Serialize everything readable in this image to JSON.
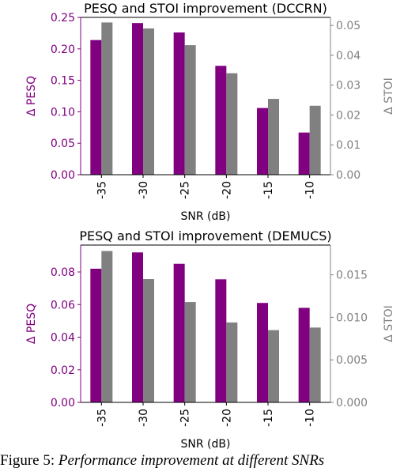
{
  "figure_caption": {
    "label": "Figure 5:",
    "text": "Performance improvement at different SNRs"
  },
  "colors": {
    "pesq": "#800080",
    "stoi": "#808080",
    "axis": "#000000"
  },
  "chart_data": [
    {
      "type": "bar",
      "title": "PESQ and STOI improvement (DCCRN)",
      "xlabel": "SNR (dB)",
      "ylabel_left": "Δ PESQ",
      "ylabel_right": "Δ STOI",
      "categories": [
        "-35",
        "-30",
        "-25",
        "-20",
        "-15",
        "-10"
      ],
      "series": [
        {
          "name": "Δ PESQ",
          "axis": "left",
          "values": [
            0.214,
            0.241,
            0.226,
            0.173,
            0.106,
            0.067
          ]
        },
        {
          "name": "Δ STOI",
          "axis": "right",
          "values": [
            0.051,
            0.049,
            0.0434,
            0.034,
            0.0254,
            0.0231
          ]
        }
      ],
      "ylim_left": [
        0,
        0.25
      ],
      "ylim_right": [
        0,
        0.0527
      ],
      "yticks_left": [
        "0.00",
        "0.05",
        "0.10",
        "0.15",
        "0.20",
        "0.25"
      ],
      "yticks_right": [
        "0.00",
        "0.01",
        "0.02",
        "0.03",
        "0.04",
        "0.05"
      ],
      "grid": false
    },
    {
      "type": "bar",
      "title": "PESQ and STOI improvement (DEMUCS)",
      "xlabel": "SNR (dB)",
      "ylabel_left": "Δ PESQ",
      "ylabel_right": "Δ STOI",
      "categories": [
        "-35",
        "-30",
        "-25",
        "-20",
        "-15",
        "-10"
      ],
      "series": [
        {
          "name": "Δ PESQ",
          "axis": "left",
          "values": [
            0.082,
            0.092,
            0.085,
            0.0755,
            0.061,
            0.058
          ]
        },
        {
          "name": "Δ STOI",
          "axis": "right",
          "values": [
            0.0178,
            0.0145,
            0.0118,
            0.0094,
            0.0085,
            0.0088
          ]
        }
      ],
      "ylim_left": [
        0,
        0.0965
      ],
      "ylim_right": [
        0,
        0.0185
      ],
      "yticks_left": [
        "0.00",
        "0.02",
        "0.04",
        "0.06",
        "0.08"
      ],
      "yticks_right": [
        "0.000",
        "0.005",
        "0.010",
        "0.015"
      ],
      "grid": false
    }
  ]
}
